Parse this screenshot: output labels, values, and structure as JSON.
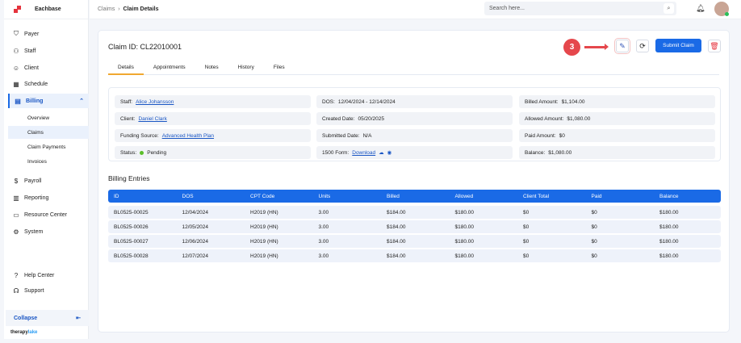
{
  "app": {
    "name": "Eachbase",
    "brand_a": "therapy",
    "brand_b": "lake"
  },
  "sidebar": {
    "items": [
      {
        "label": "Payer",
        "icon": "shield-icon"
      },
      {
        "label": "Staff",
        "icon": "people-icon"
      },
      {
        "label": "Client",
        "icon": "user-icon"
      },
      {
        "label": "Schedule",
        "icon": "calendar-icon"
      },
      {
        "label": "Billing",
        "icon": "billing-icon"
      }
    ],
    "billing_sub": [
      "Overview",
      "Claims",
      "Claim Payments",
      "Invoices"
    ],
    "items2": [
      {
        "label": "Payroll"
      },
      {
        "label": "Reporting"
      },
      {
        "label": "Resource Center"
      },
      {
        "label": "System"
      }
    ],
    "bottom": [
      {
        "label": "Help Center"
      },
      {
        "label": "Support"
      }
    ],
    "collapse": "Collapse"
  },
  "header": {
    "breadcrumb": [
      "Claims",
      "Claim Details"
    ],
    "search_placeholder": "Search here..."
  },
  "claim": {
    "title": "Claim ID: CL22010001",
    "tabs": [
      "Details",
      "Appointments",
      "Notes",
      "History",
      "Files"
    ],
    "step_badge": "3",
    "submit": "Submit Claim",
    "fields": {
      "staff_l": "Staff:",
      "staff": "Alice Johansson",
      "client_l": "Client:",
      "client": "Daniel Clark",
      "funding_l": "Funding Source:",
      "funding": "Advanced Health Plan",
      "status_l": "Status:",
      "status": "Pending",
      "dos_l": "DOS:",
      "dos": "12/04/2024 - 12/14/2024",
      "created_l": "Created Date:",
      "created": "05/20/2025",
      "submitted_l": "Submitted Date:",
      "submitted": "N/A",
      "form_l": "1500 Form:",
      "form": "Download",
      "billed_l": "Billed Amount:",
      "billed": "$1,104.00",
      "allowed_l": "Allowed Amount:",
      "allowed": "$1,080.00",
      "paid_l": "Paid Amount:",
      "paid": "$0",
      "balance_l": "Balance:",
      "balance": "$1,080.00"
    }
  },
  "billing": {
    "title": "Billing Entries",
    "columns": [
      "ID",
      "DOS",
      "CPT Code",
      "Units",
      "Billed",
      "Allowed",
      "Client Total",
      "Paid",
      "Balance"
    ],
    "rows": [
      [
        "BL0525-00025",
        "12/04/2024",
        "H2019 (HN)",
        "3.00",
        "$184.00",
        "$180.00",
        "$0",
        "$0",
        "$180.00"
      ],
      [
        "BL0525-00026",
        "12/05/2024",
        "H2019 (HN)",
        "3.00",
        "$184.00",
        "$180.00",
        "$0",
        "$0",
        "$180.00"
      ],
      [
        "BL0525-00027",
        "12/06/2024",
        "H2019 (HN)",
        "3.00",
        "$184.00",
        "$180.00",
        "$0",
        "$0",
        "$180.00"
      ],
      [
        "BL0525-00028",
        "12/07/2024",
        "H2019 (HN)",
        "3.00",
        "$184.00",
        "$180.00",
        "$0",
        "$0",
        "$180.00"
      ]
    ]
  }
}
